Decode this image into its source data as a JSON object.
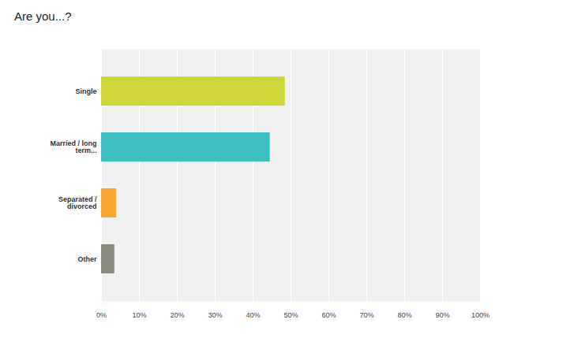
{
  "chart_data": {
    "type": "bar",
    "title": "Are you...?",
    "orientation": "horizontal",
    "categories": [
      "Single",
      "Married / long term...",
      "Separated / divorced",
      "Other"
    ],
    "values": [
      48.5,
      44.5,
      4,
      3.5
    ],
    "colors": [
      "#cfd63a",
      "#3cbfc1",
      "#f6a833",
      "#8a8a7e"
    ],
    "xlim": [
      0,
      100
    ],
    "xticks": [
      {
        "value": 0,
        "label": "0%"
      },
      {
        "value": 10,
        "label": "10%"
      },
      {
        "value": 20,
        "label": "20%"
      },
      {
        "value": 30,
        "label": "30%"
      },
      {
        "value": 40,
        "label": "40%"
      },
      {
        "value": 50,
        "label": "50%"
      },
      {
        "value": 60,
        "label": "60%"
      },
      {
        "value": 70,
        "label": "70%"
      },
      {
        "value": 80,
        "label": "80%"
      },
      {
        "value": 90,
        "label": "90%"
      },
      {
        "value": 100,
        "label": "100%"
      }
    ],
    "grid": true
  }
}
